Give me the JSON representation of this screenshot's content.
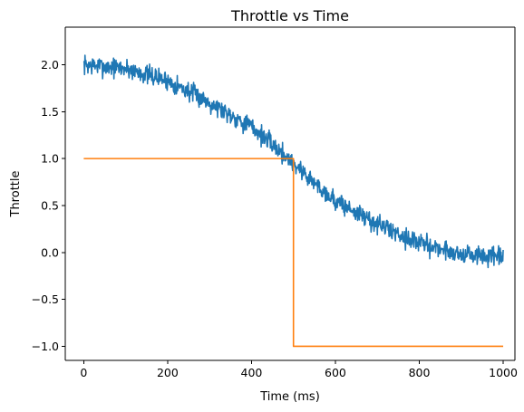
{
  "chart_data": {
    "type": "line",
    "title": "Throttle vs Time",
    "xlabel": "Time (ms)",
    "ylabel": "Throttle",
    "xlim": [
      -44,
      1028
    ],
    "ylim": [
      -1.15,
      2.4
    ],
    "xticks": [
      0,
      200,
      400,
      600,
      800,
      1000
    ],
    "yticks": [
      -1.0,
      -0.5,
      0.0,
      0.5,
      1.0,
      1.5,
      2.0
    ],
    "ytick_labels": [
      "−1.0",
      "−0.5",
      "0.0",
      "0.5",
      "1.0",
      "1.5",
      "2.0"
    ],
    "grid": false,
    "legend": "none",
    "series": [
      {
        "color": "#1f77b4",
        "style": "noisy-trend",
        "x_range": [
          0,
          1000
        ],
        "n_points": 1000,
        "noise_amplitude": 0.11,
        "noise_seed": 7,
        "trend_x": [
          0,
          100,
          200,
          300,
          400,
          450,
          500,
          550,
          600,
          700,
          800,
          900,
          1000
        ],
        "trend_y": [
          2.0,
          1.96,
          1.83,
          1.6,
          1.34,
          1.15,
          0.95,
          0.74,
          0.55,
          0.3,
          0.1,
          -0.02,
          -0.06
        ]
      },
      {
        "color": "#ff7f0e",
        "style": "step",
        "x": [
          0,
          500,
          500,
          1000
        ],
        "y": [
          1.0,
          1.0,
          -1.0,
          -1.0
        ]
      }
    ]
  }
}
